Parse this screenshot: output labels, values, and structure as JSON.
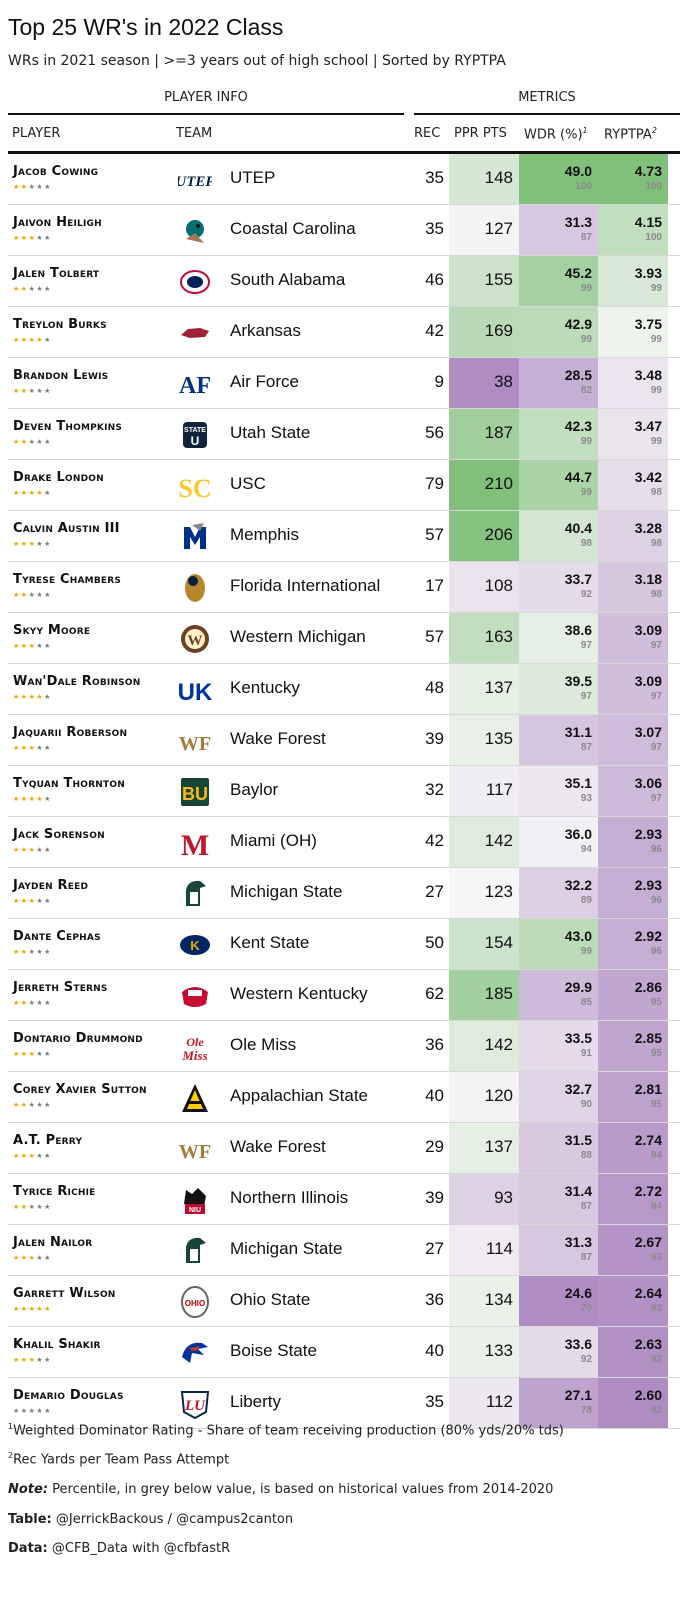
{
  "title": "Top 25 WR's in 2022 Class",
  "subtitle": "WRs in 2021 season | >=3 years out of high school | Sorted by RYPTPA",
  "groups": {
    "player_info": "PLAYER INFO",
    "metrics": "METRICS"
  },
  "columns": {
    "player": "PLAYER",
    "team": "TEAM",
    "rec": "REC",
    "ppr": "PPR PTS",
    "wdr": "WDR (%)",
    "wdr_sup": "1",
    "ryptpa": "RYPTPA",
    "ryptpa_sup": "2"
  },
  "footnotes": {
    "n1_mark": "1",
    "n1": "Weighted Dominator Rating - Share of team receiving production (80% yds/20% tds)",
    "n2_mark": "2",
    "n2": "Rec Yards per Team Pass Attempt",
    "note_label": "Note:",
    "note": " Percentile, in grey below value, is based on historical values from 2014-2020",
    "table_label": "Table:",
    "table": " @JerrickBackous / @campus2canton",
    "data_label": "Data:",
    "data": " @CFB_Data with @cfbfastR"
  },
  "colors": {
    "green_strong": "#80c07b",
    "neutral": "#f7f7f7",
    "purple_strong": "#af8dc3",
    "star": "#f0a500",
    "star_off": "#7d7d7d"
  },
  "chart_data": {
    "type": "table",
    "columns": [
      "PLAYER",
      "TEAM",
      "REC",
      "PPR PTS",
      "WDR (%)",
      "RYPTPA"
    ],
    "rows": [
      {
        "player": "Jacob Cowing",
        "stars": 2,
        "team": "UTEP",
        "logo": "utep-logo",
        "rec": 35,
        "ppr": 148,
        "wdr": "49.0",
        "wdr_pct": 100,
        "ryptpa": "4.73",
        "ryptpa_pct": 100
      },
      {
        "player": "Jaivon Heiligh",
        "stars": 3,
        "team": "Coastal Carolina",
        "logo": "coastal-carolina-logo",
        "rec": 35,
        "ppr": 127,
        "wdr": "31.3",
        "wdr_pct": 87,
        "ryptpa": "4.15",
        "ryptpa_pct": 100
      },
      {
        "player": "Jalen Tolbert",
        "stars": 2,
        "team": "South Alabama",
        "logo": "south-alabama-logo",
        "rec": 46,
        "ppr": 155,
        "wdr": "45.2",
        "wdr_pct": 99,
        "ryptpa": "3.93",
        "ryptpa_pct": 99
      },
      {
        "player": "Treylon Burks",
        "stars": 4,
        "team": "Arkansas",
        "logo": "arkansas-logo",
        "rec": 42,
        "ppr": 169,
        "wdr": "42.9",
        "wdr_pct": 99,
        "ryptpa": "3.75",
        "ryptpa_pct": 99
      },
      {
        "player": "Brandon Lewis",
        "stars": 2,
        "team": "Air Force",
        "logo": "air-force-logo",
        "rec": 9,
        "ppr": 38,
        "wdr": "28.5",
        "wdr_pct": 82,
        "ryptpa": "3.48",
        "ryptpa_pct": 99
      },
      {
        "player": "Deven Thompkins",
        "stars": 2,
        "team": "Utah State",
        "logo": "utah-state-logo",
        "rec": 56,
        "ppr": 187,
        "wdr": "42.3",
        "wdr_pct": 99,
        "ryptpa": "3.47",
        "ryptpa_pct": 99
      },
      {
        "player": "Drake London",
        "stars": 4,
        "team": "USC",
        "logo": "usc-logo",
        "rec": 79,
        "ppr": 210,
        "wdr": "44.7",
        "wdr_pct": 99,
        "ryptpa": "3.42",
        "ryptpa_pct": 98
      },
      {
        "player": "Calvin Austin III",
        "stars": 3,
        "team": "Memphis",
        "logo": "memphis-logo",
        "rec": 57,
        "ppr": 206,
        "wdr": "40.4",
        "wdr_pct": 98,
        "ryptpa": "3.28",
        "ryptpa_pct": 98
      },
      {
        "player": "Tyrese Chambers",
        "stars": 2,
        "team": "Florida International",
        "logo": "fiu-logo",
        "rec": 17,
        "ppr": 108,
        "wdr": "33.7",
        "wdr_pct": 92,
        "ryptpa": "3.18",
        "ryptpa_pct": 98
      },
      {
        "player": "Skyy Moore",
        "stars": 3,
        "team": "Western Michigan",
        "logo": "western-michigan-logo",
        "rec": 57,
        "ppr": 163,
        "wdr": "38.6",
        "wdr_pct": 97,
        "ryptpa": "3.09",
        "ryptpa_pct": 97
      },
      {
        "player": "Wan'Dale Robinson",
        "stars": 4,
        "team": "Kentucky",
        "logo": "kentucky-logo",
        "rec": 48,
        "ppr": 137,
        "wdr": "39.5",
        "wdr_pct": 97,
        "ryptpa": "3.09",
        "ryptpa_pct": 97
      },
      {
        "player": "Jaquarii Roberson",
        "stars": 3,
        "team": "Wake Forest",
        "logo": "wake-forest-logo",
        "rec": 39,
        "ppr": 135,
        "wdr": "31.1",
        "wdr_pct": 87,
        "ryptpa": "3.07",
        "ryptpa_pct": 97
      },
      {
        "player": "Tyquan Thornton",
        "stars": 4,
        "team": "Baylor",
        "logo": "baylor-logo",
        "rec": 32,
        "ppr": 117,
        "wdr": "35.1",
        "wdr_pct": 93,
        "ryptpa": "3.06",
        "ryptpa_pct": 97
      },
      {
        "player": "Jack Sorenson",
        "stars": 3,
        "team": "Miami (OH)",
        "logo": "miami-oh-logo",
        "rec": 42,
        "ppr": 142,
        "wdr": "36.0",
        "wdr_pct": 94,
        "ryptpa": "2.93",
        "ryptpa_pct": 96
      },
      {
        "player": "Jayden Reed",
        "stars": 3,
        "team": "Michigan State",
        "logo": "michigan-state-logo",
        "rec": 27,
        "ppr": 123,
        "wdr": "32.2",
        "wdr_pct": 89,
        "ryptpa": "2.93",
        "ryptpa_pct": 96
      },
      {
        "player": "Dante Cephas",
        "stars": 2,
        "team": "Kent State",
        "logo": "kent-state-logo",
        "rec": 50,
        "ppr": 154,
        "wdr": "43.0",
        "wdr_pct": 99,
        "ryptpa": "2.92",
        "ryptpa_pct": 96
      },
      {
        "player": "Jerreth Sterns",
        "stars": 2,
        "team": "Western Kentucky",
        "logo": "western-kentucky-logo",
        "rec": 62,
        "ppr": 185,
        "wdr": "29.9",
        "wdr_pct": 85,
        "ryptpa": "2.86",
        "ryptpa_pct": 95
      },
      {
        "player": "Dontario Drummond",
        "stars": 3,
        "team": "Ole Miss",
        "logo": "ole-miss-logo",
        "rec": 36,
        "ppr": 142,
        "wdr": "33.5",
        "wdr_pct": 91,
        "ryptpa": "2.85",
        "ryptpa_pct": 95
      },
      {
        "player": "Corey Xavier Sutton",
        "stars": 2,
        "team": "Appalachian State",
        "logo": "appalachian-state-logo",
        "rec": 40,
        "ppr": 120,
        "wdr": "32.7",
        "wdr_pct": 90,
        "ryptpa": "2.81",
        "ryptpa_pct": 95
      },
      {
        "player": "A.T. Perry",
        "stars": 3,
        "team": "Wake Forest",
        "logo": "wake-forest-logo",
        "rec": 29,
        "ppr": 137,
        "wdr": "31.5",
        "wdr_pct": 88,
        "ryptpa": "2.74",
        "ryptpa_pct": 94
      },
      {
        "player": "Tyrice Richie",
        "stars": 2,
        "team": "Northern Illinois",
        "logo": "northern-illinois-logo",
        "rec": 39,
        "ppr": 93,
        "wdr": "31.4",
        "wdr_pct": 87,
        "ryptpa": "2.72",
        "ryptpa_pct": 94
      },
      {
        "player": "Jalen Nailor",
        "stars": 3,
        "team": "Michigan State",
        "logo": "michigan-state-logo",
        "rec": 27,
        "ppr": 114,
        "wdr": "31.3",
        "wdr_pct": 87,
        "ryptpa": "2.67",
        "ryptpa_pct": 93
      },
      {
        "player": "Garrett Wilson",
        "stars": 5,
        "team": "Ohio State",
        "logo": "ohio-state-logo",
        "rec": 36,
        "ppr": 134,
        "wdr": "24.6",
        "wdr_pct": 70,
        "ryptpa": "2.64",
        "ryptpa_pct": 93
      },
      {
        "player": "Khalil Shakir",
        "stars": 3,
        "team": "Boise State",
        "logo": "boise-state-logo",
        "rec": 40,
        "ppr": 133,
        "wdr": "33.6",
        "wdr_pct": 92,
        "ryptpa": "2.63",
        "ryptpa_pct": 92
      },
      {
        "player": "Demario Douglas",
        "stars": 0,
        "team": "Liberty",
        "logo": "liberty-logo",
        "rec": 35,
        "ppr": 112,
        "wdr": "27.1",
        "wdr_pct": 78,
        "ryptpa": "2.60",
        "ryptpa_pct": 92
      }
    ]
  }
}
